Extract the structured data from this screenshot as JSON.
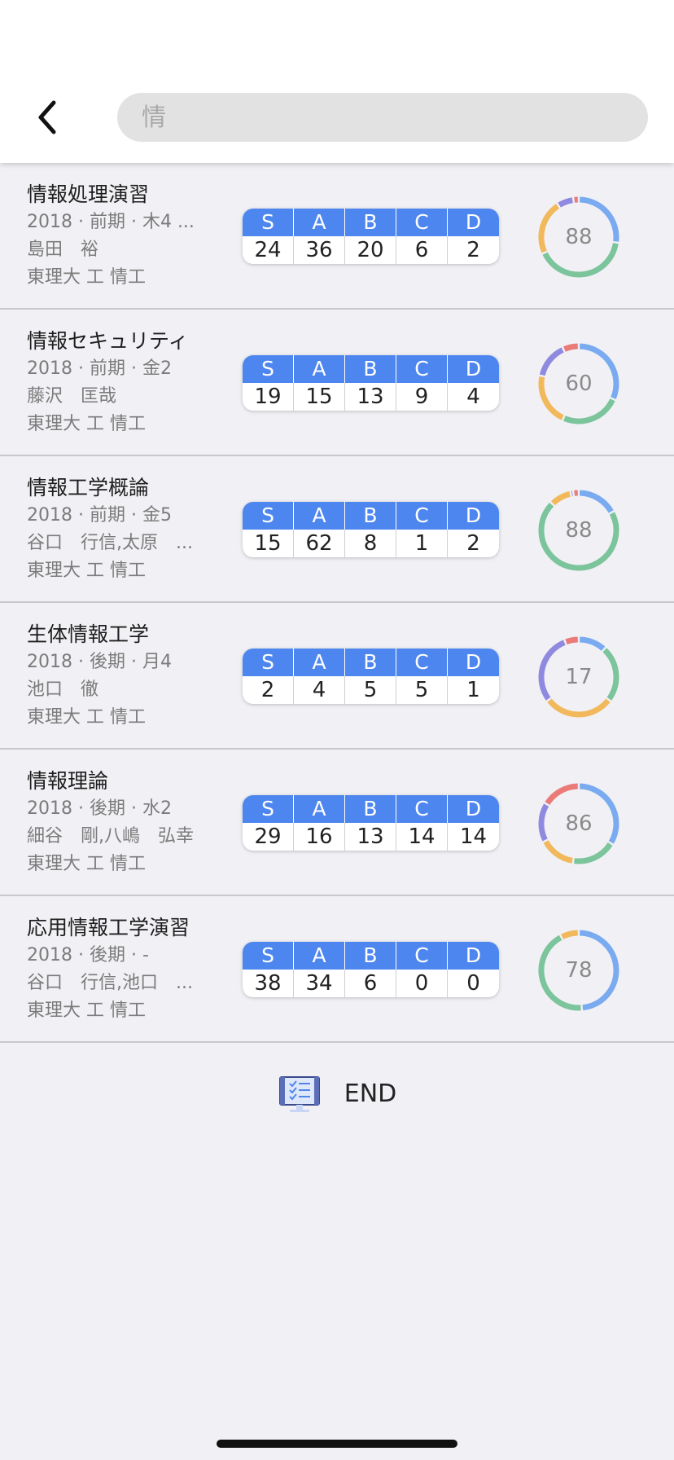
{
  "search": {
    "value": "",
    "placeholder": "情"
  },
  "colors": {
    "S": "#7aaaf0",
    "A": "#7cc49c",
    "B": "#f1b95c",
    "C": "#8f8ae0",
    "D": "#ea7b79",
    "header_blue": "#4d86ef"
  },
  "grade_labels": [
    "S",
    "A",
    "B",
    "C",
    "D"
  ],
  "courses": [
    {
      "title": "情報処理演習",
      "term": "2018 · 前期 · 木4 ...",
      "teacher": "島田　裕",
      "school": "東理大 工 情工",
      "grades": [
        24,
        36,
        20,
        6,
        2
      ],
      "score": "88"
    },
    {
      "title": "情報セキュリティ",
      "term": "2018 · 前期 · 金2",
      "teacher": "藤沢　匡哉",
      "school": "東理大 工 情工",
      "grades": [
        19,
        15,
        13,
        9,
        4
      ],
      "score": "60"
    },
    {
      "title": "情報工学概論",
      "term": "2018 · 前期 · 金5",
      "teacher": "谷口　行信,太原　...",
      "school": "東理大 工 情工",
      "grades": [
        15,
        62,
        8,
        1,
        2
      ],
      "score": "88"
    },
    {
      "title": "生体情報工学",
      "term": "2018 · 後期 · 月4",
      "teacher": "池口　徹",
      "school": "東理大 工 情工",
      "grades": [
        2,
        4,
        5,
        5,
        1
      ],
      "score": "17"
    },
    {
      "title": "情報理論",
      "term": "2018 · 後期 · 水2",
      "teacher": "細谷　剛,八嶋　弘幸",
      "school": "東理大 工 情工",
      "grades": [
        29,
        16,
        13,
        14,
        14
      ],
      "score": "86"
    },
    {
      "title": "応用情報工学演習",
      "term": "2018 · 後期 · -",
      "teacher": "谷口　行信,池口　...",
      "school": "東理大 工 情工",
      "grades": [
        38,
        34,
        6,
        0,
        0
      ],
      "score": "78"
    }
  ],
  "footer": {
    "end_label": "END",
    "icon": "checklist-monitor-icon"
  }
}
